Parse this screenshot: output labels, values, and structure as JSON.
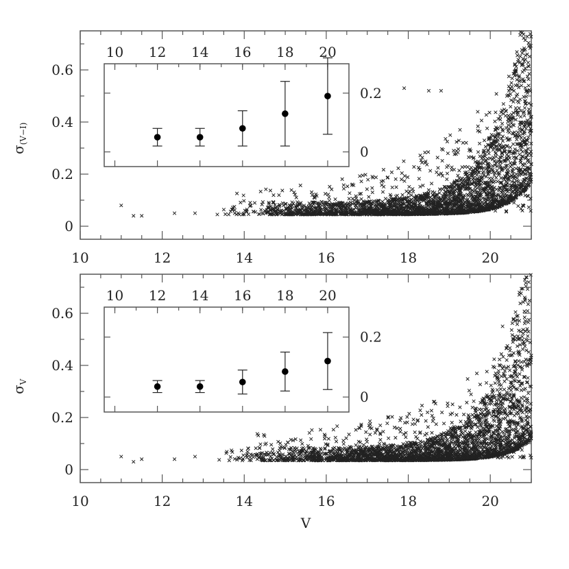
{
  "chart_data": [
    {
      "type": "scatter",
      "panel": "top",
      "xlabel": "",
      "ylabel": "σ",
      "ylabel_sub": "(V−I)",
      "xlim": [
        10,
        21
      ],
      "ylim": [
        -0.05,
        0.75
      ],
      "xticks": [
        10,
        12,
        14,
        16,
        18,
        20
      ],
      "yticks": [
        0,
        0.2,
        0.4,
        0.6
      ],
      "ytick_labels": [
        "0",
        "0.2",
        "0.4",
        "0.6"
      ],
      "marker": "x",
      "scatter_model": {
        "seed": 11,
        "base": 0.045,
        "amp": 0.105,
        "scale": 0.55,
        "x0": 21.0,
        "top_amp": 0.62,
        "top_scale": 0.9,
        "n_dense": 2600,
        "n_sparse": 430
      },
      "sample_points": [
        {
          "x": 11.0,
          "y": 0.08
        },
        {
          "x": 11.3,
          "y": 0.04
        },
        {
          "x": 11.5,
          "y": 0.04
        },
        {
          "x": 12.3,
          "y": 0.05
        },
        {
          "x": 12.8,
          "y": 0.05
        },
        {
          "x": 17.9,
          "y": 0.53
        },
        {
          "x": 18.5,
          "y": 0.52
        },
        {
          "x": 18.8,
          "y": 0.52
        },
        {
          "x": 20.9,
          "y": 0.66
        }
      ],
      "inset": {
        "xticks": [
          10,
          12,
          14,
          16,
          18,
          20
        ],
        "xlim": [
          9.5,
          21
        ],
        "yticks": [
          0,
          0.2
        ],
        "ytick_labels": [
          "0",
          "0.2"
        ],
        "ylim": [
          -0.05,
          0.3
        ],
        "points": [
          {
            "x": 12,
            "y": 0.05,
            "err": 0.03
          },
          {
            "x": 14,
            "y": 0.05,
            "err": 0.03
          },
          {
            "x": 16,
            "y": 0.08,
            "err": 0.06
          },
          {
            "x": 18,
            "y": 0.13,
            "err": 0.11
          },
          {
            "x": 20,
            "y": 0.19,
            "err": 0.13
          }
        ]
      }
    },
    {
      "type": "scatter",
      "panel": "bottom",
      "xlabel": "V",
      "ylabel": "σ",
      "ylabel_sub": "V",
      "xlim": [
        10,
        21
      ],
      "ylim": [
        -0.05,
        0.75
      ],
      "xticks": [
        10,
        12,
        14,
        16,
        18,
        20
      ],
      "yticks": [
        0,
        0.2,
        0.4,
        0.6
      ],
      "ytick_labels": [
        "0",
        "0.2",
        "0.4",
        "0.6"
      ],
      "marker": "x",
      "scatter_model": {
        "seed": 23,
        "base": 0.035,
        "amp": 0.07,
        "scale": 0.55,
        "x0": 21.0,
        "top_amp": 0.5,
        "top_scale": 0.9,
        "n_dense": 2600,
        "n_sparse": 400
      },
      "sample_points": [
        {
          "x": 11.0,
          "y": 0.05
        },
        {
          "x": 11.3,
          "y": 0.03
        },
        {
          "x": 11.5,
          "y": 0.04
        },
        {
          "x": 12.3,
          "y": 0.04
        },
        {
          "x": 12.8,
          "y": 0.05
        },
        {
          "x": 20.3,
          "y": 0.55
        },
        {
          "x": 20.7,
          "y": 0.5
        },
        {
          "x": 20.9,
          "y": 0.54
        }
      ],
      "inset": {
        "xticks": [
          10,
          12,
          14,
          16,
          18,
          20
        ],
        "xlim": [
          9.5,
          21
        ],
        "yticks": [
          0,
          0.2
        ],
        "ytick_labels": [
          "0",
          "0.2"
        ],
        "ylim": [
          -0.05,
          0.3
        ],
        "points": [
          {
            "x": 12,
            "y": 0.035,
            "err": 0.02
          },
          {
            "x": 14,
            "y": 0.035,
            "err": 0.02
          },
          {
            "x": 16,
            "y": 0.05,
            "err": 0.04
          },
          {
            "x": 18,
            "y": 0.085,
            "err": 0.065
          },
          {
            "x": 20,
            "y": 0.12,
            "err": 0.095
          }
        ]
      }
    }
  ]
}
